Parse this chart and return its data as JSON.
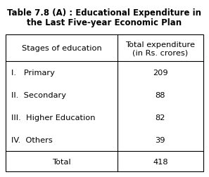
{
  "title_line1": "Table 7.8 (A) : Educational Expenditure in",
  "title_line2": "the Last Five-year Economic Plan",
  "col1_header": "Stages of education",
  "col2_header_line1": "Total expenditure",
  "col2_header_line2": "(in Rs. crores)",
  "rows": [
    {
      "label": "I.   Primary",
      "value": "209"
    },
    {
      "label": "II.  Secondary",
      "value": "88"
    },
    {
      "label": "III.  Higher Education",
      "value": "82"
    },
    {
      "label": "IV.  Others",
      "value": "39"
    }
  ],
  "total_label": "Total",
  "total_value": "418",
  "bg_color": "#ffffff",
  "title_fontsize": 8.5,
  "header_fontsize": 8.2,
  "body_fontsize": 8.2,
  "fig_width": 2.97,
  "fig_height": 2.53,
  "dpi": 100
}
